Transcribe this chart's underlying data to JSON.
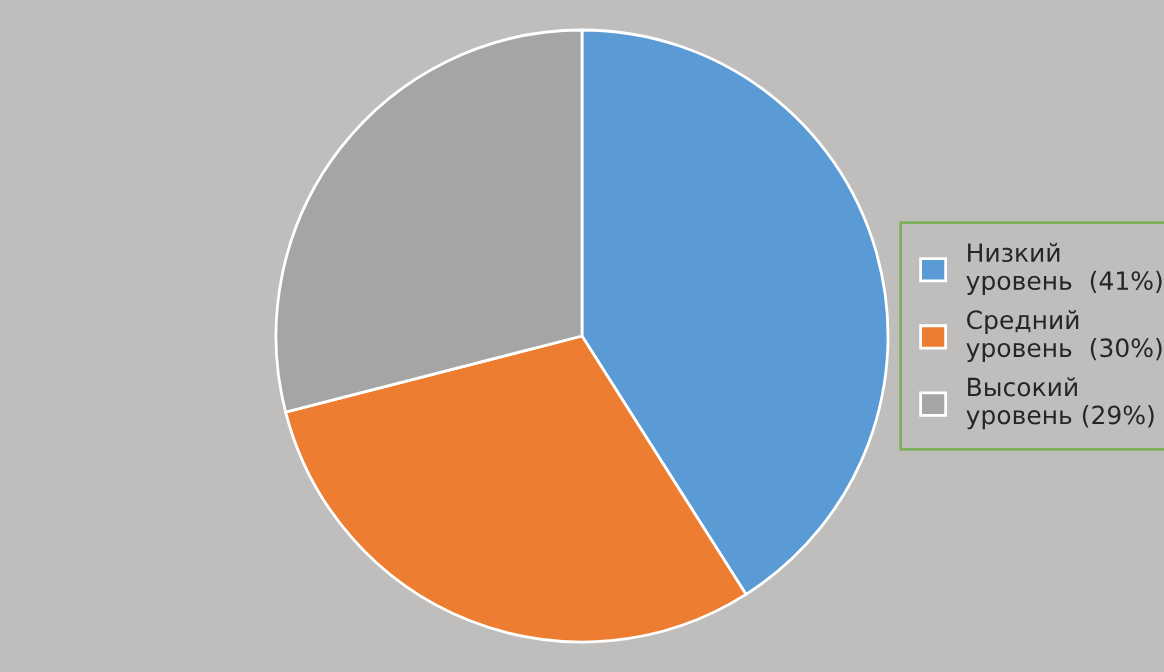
{
  "chart_data": {
    "type": "pie",
    "categories": [
      "Низкий уровень  (41%)",
      "Средний уровень  (30%)",
      "Высокий уровень (29%)"
    ],
    "values": [
      41,
      30,
      29
    ],
    "colors": [
      "#5b9bd5",
      "#ed7d31",
      "#a5a5a5"
    ],
    "legend": "right"
  }
}
